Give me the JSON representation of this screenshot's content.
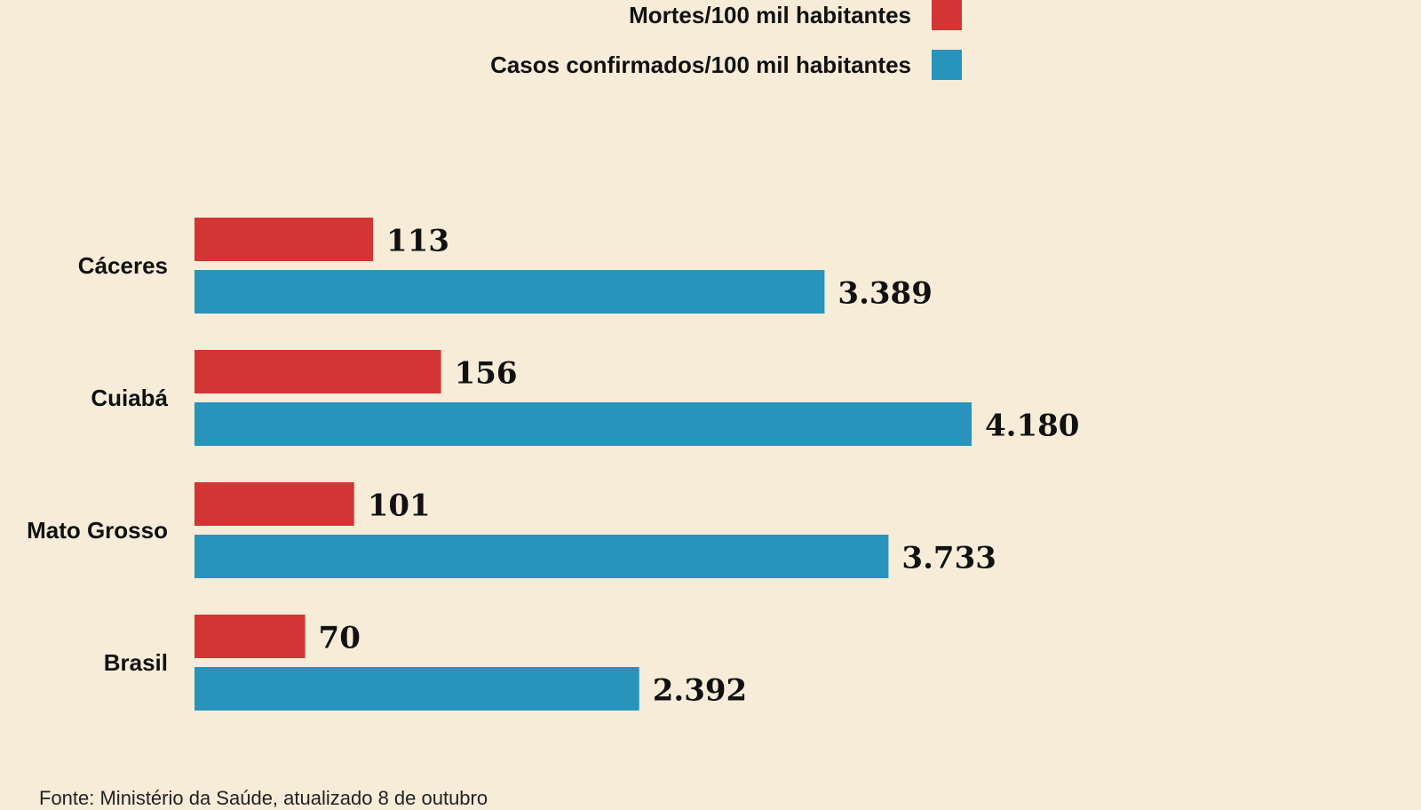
{
  "chart_data": {
    "type": "bar",
    "orientation": "horizontal",
    "categories": [
      "Cáceres",
      "Cuiabá",
      "Mato Grosso",
      "Brasil"
    ],
    "series": [
      {
        "name": "Mortes/100 mil habitantes",
        "color": "#d33534",
        "values": [
          113,
          156,
          101,
          70
        ],
        "labels": [
          "113",
          "156",
          "101",
          "70"
        ]
      },
      {
        "name": "Casos confirmados/100 mil habitantes",
        "color": "#2893bb",
        "values": [
          3389,
          4180,
          3733,
          2392
        ],
        "labels": [
          "3.389",
          "4.180",
          "3.733",
          "2.392"
        ]
      }
    ],
    "legend_position": "top",
    "grid": false,
    "xlim": [
      0,
      4180
    ]
  },
  "source": "Fonte: Ministério da Saúde, atualizado 8 de outubro"
}
